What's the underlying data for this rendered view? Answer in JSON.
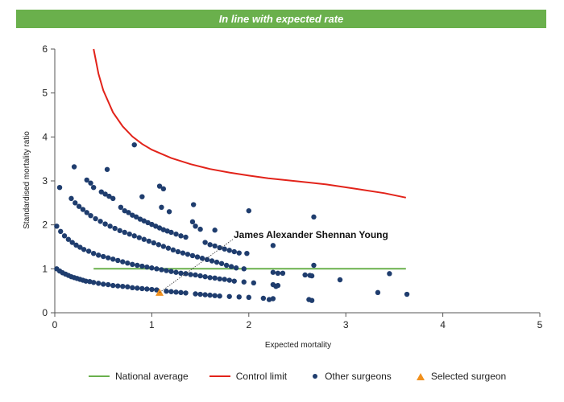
{
  "banner": {
    "text": "In line with expected rate",
    "color": "#6ab04c"
  },
  "chart_data": {
    "type": "scatter",
    "xlabel": "Expected mortality",
    "ylabel": "Standardised mortality ratio",
    "xlim": [
      0,
      5
    ],
    "ylim": [
      0,
      6
    ],
    "x_ticks": [
      "0",
      "1",
      "2",
      "3",
      "4",
      "5"
    ],
    "y_ticks": [
      "0",
      "1",
      "2",
      "3",
      "4",
      "5",
      "6"
    ],
    "grid": false,
    "legend_position": "bottom",
    "annotation": {
      "text": "James Alexander Shennan Young",
      "x": 1.08,
      "y": 0.46
    },
    "series": [
      {
        "name": "National average",
        "kind": "line",
        "color": "#6ab04c",
        "x": [
          0.4,
          3.62
        ],
        "y": [
          1,
          1
        ]
      },
      {
        "name": "Control limit",
        "kind": "line",
        "color": "#e2231a",
        "x": [
          0.4,
          0.45,
          0.5,
          0.6,
          0.7,
          0.8,
          0.9,
          1.0,
          1.2,
          1.4,
          1.6,
          1.8,
          2.0,
          2.2,
          2.5,
          2.8,
          3.1,
          3.4,
          3.62
        ],
        "y": [
          6.0,
          5.44,
          5.06,
          4.56,
          4.24,
          4.01,
          3.84,
          3.71,
          3.52,
          3.38,
          3.27,
          3.19,
          3.12,
          3.06,
          2.99,
          2.92,
          2.82,
          2.72,
          2.62
        ]
      },
      {
        "name": "Other surgeons",
        "kind": "scatter",
        "color": "#1f3d6e",
        "points": [
          [
            0.02,
            1.0
          ],
          [
            0.05,
            0.95
          ],
          [
            0.08,
            0.91
          ],
          [
            0.11,
            0.88
          ],
          [
            0.14,
            0.85
          ],
          [
            0.17,
            0.82
          ],
          [
            0.2,
            0.8
          ],
          [
            0.23,
            0.78
          ],
          [
            0.26,
            0.76
          ],
          [
            0.29,
            0.74
          ],
          [
            0.32,
            0.72
          ],
          [
            0.36,
            0.71
          ],
          [
            0.4,
            0.69
          ],
          [
            0.45,
            0.67
          ],
          [
            0.5,
            0.65
          ],
          [
            0.55,
            0.64
          ],
          [
            0.6,
            0.62
          ],
          [
            0.65,
            0.61
          ],
          [
            0.7,
            0.6
          ],
          [
            0.75,
            0.59
          ],
          [
            0.8,
            0.57
          ],
          [
            0.85,
            0.56
          ],
          [
            0.9,
            0.55
          ],
          [
            0.95,
            0.54
          ],
          [
            1.0,
            0.53
          ],
          [
            1.05,
            0.52
          ],
          [
            1.15,
            0.49
          ],
          [
            1.2,
            0.48
          ],
          [
            1.25,
            0.47
          ],
          [
            1.3,
            0.46
          ],
          [
            1.35,
            0.45
          ],
          [
            1.45,
            0.43
          ],
          [
            1.5,
            0.42
          ],
          [
            1.55,
            0.41
          ],
          [
            1.6,
            0.4
          ],
          [
            1.65,
            0.39
          ],
          [
            1.7,
            0.38
          ],
          [
            1.8,
            0.37
          ],
          [
            1.9,
            0.36
          ],
          [
            2.0,
            0.35
          ],
          [
            2.15,
            0.33
          ],
          [
            2.25,
            0.32
          ],
          [
            0.02,
            1.97
          ],
          [
            0.06,
            1.85
          ],
          [
            0.1,
            1.75
          ],
          [
            0.14,
            1.67
          ],
          [
            0.18,
            1.6
          ],
          [
            0.22,
            1.54
          ],
          [
            0.26,
            1.49
          ],
          [
            0.3,
            1.44
          ],
          [
            0.35,
            1.4
          ],
          [
            0.4,
            1.35
          ],
          [
            0.45,
            1.31
          ],
          [
            0.5,
            1.28
          ],
          [
            0.55,
            1.25
          ],
          [
            0.6,
            1.22
          ],
          [
            0.65,
            1.19
          ],
          [
            0.7,
            1.16
          ],
          [
            0.75,
            1.13
          ],
          [
            0.8,
            1.1
          ],
          [
            0.85,
            1.08
          ],
          [
            0.9,
            1.06
          ],
          [
            0.95,
            1.04
          ],
          [
            1.0,
            1.02
          ],
          [
            1.05,
            1.0
          ],
          [
            1.1,
            0.98
          ],
          [
            1.15,
            0.96
          ],
          [
            1.2,
            0.94
          ],
          [
            1.25,
            0.92
          ],
          [
            1.3,
            0.9
          ],
          [
            1.35,
            0.89
          ],
          [
            1.4,
            0.87
          ],
          [
            1.45,
            0.86
          ],
          [
            1.5,
            0.84
          ],
          [
            1.55,
            0.82
          ],
          [
            1.6,
            0.8
          ],
          [
            1.65,
            0.79
          ],
          [
            1.7,
            0.77
          ],
          [
            1.75,
            0.76
          ],
          [
            1.8,
            0.74
          ],
          [
            1.85,
            0.72
          ],
          [
            1.95,
            0.7
          ],
          [
            2.05,
            0.68
          ],
          [
            2.25,
            0.64
          ],
          [
            2.3,
            0.62
          ],
          [
            2.62,
            0.3
          ],
          [
            2.65,
            0.28
          ],
          [
            0.17,
            2.6
          ],
          [
            0.21,
            2.5
          ],
          [
            0.25,
            2.42
          ],
          [
            0.29,
            2.35
          ],
          [
            0.33,
            2.28
          ],
          [
            0.37,
            2.21
          ],
          [
            0.42,
            2.14
          ],
          [
            0.47,
            2.08
          ],
          [
            0.52,
            2.02
          ],
          [
            0.57,
            1.97
          ],
          [
            0.62,
            1.92
          ],
          [
            0.67,
            1.87
          ],
          [
            0.72,
            1.83
          ],
          [
            0.77,
            1.79
          ],
          [
            0.82,
            1.75
          ],
          [
            0.87,
            1.71
          ],
          [
            0.92,
            1.67
          ],
          [
            0.97,
            1.63
          ],
          [
            1.02,
            1.59
          ],
          [
            1.07,
            1.55
          ],
          [
            1.12,
            1.51
          ],
          [
            1.17,
            1.47
          ],
          [
            1.22,
            1.43
          ],
          [
            1.27,
            1.39
          ],
          [
            1.32,
            1.36
          ],
          [
            1.37,
            1.33
          ],
          [
            1.42,
            1.3
          ],
          [
            1.47,
            1.27
          ],
          [
            1.52,
            1.24
          ],
          [
            1.57,
            1.21
          ],
          [
            1.62,
            1.18
          ],
          [
            1.67,
            1.15
          ],
          [
            1.72,
            1.12
          ],
          [
            1.77,
            1.08
          ],
          [
            1.82,
            1.05
          ],
          [
            1.87,
            1.02
          ],
          [
            1.95,
            1.0
          ],
          [
            2.25,
            0.92
          ],
          [
            2.3,
            0.9
          ],
          [
            2.35,
            0.9
          ],
          [
            2.58,
            0.86
          ],
          [
            2.63,
            0.85
          ],
          [
            2.65,
            0.84
          ],
          [
            0.48,
            2.75
          ],
          [
            0.52,
            2.7
          ],
          [
            0.56,
            2.65
          ],
          [
            0.6,
            2.6
          ],
          [
            0.68,
            2.4
          ],
          [
            0.72,
            2.32
          ],
          [
            0.76,
            2.28
          ],
          [
            0.8,
            2.22
          ],
          [
            0.84,
            2.18
          ],
          [
            0.88,
            2.13
          ],
          [
            0.92,
            2.09
          ],
          [
            0.96,
            2.05
          ],
          [
            1.0,
            2.01
          ],
          [
            1.04,
            1.97
          ],
          [
            1.08,
            1.93
          ],
          [
            1.12,
            1.89
          ],
          [
            1.16,
            1.86
          ],
          [
            1.2,
            1.83
          ],
          [
            1.25,
            1.79
          ],
          [
            1.3,
            1.75
          ],
          [
            1.35,
            1.72
          ],
          [
            1.45,
            1.97
          ],
          [
            1.5,
            1.9
          ],
          [
            1.55,
            1.6
          ],
          [
            1.6,
            1.55
          ],
          [
            1.65,
            1.52
          ],
          [
            1.7,
            1.48
          ],
          [
            1.75,
            1.45
          ],
          [
            1.8,
            1.42
          ],
          [
            1.85,
            1.39
          ],
          [
            1.9,
            1.36
          ],
          [
            1.98,
            1.35
          ],
          [
            2.25,
            1.53
          ],
          [
            0.05,
            2.85
          ],
          [
            0.2,
            3.32
          ],
          [
            0.33,
            3.02
          ],
          [
            0.37,
            2.95
          ],
          [
            0.4,
            2.85
          ],
          [
            0.54,
            3.26
          ],
          [
            0.82,
            3.82
          ],
          [
            0.9,
            2.64
          ],
          [
            1.08,
            2.88
          ],
          [
            1.12,
            2.82
          ],
          [
            1.1,
            2.4
          ],
          [
            1.18,
            2.3
          ],
          [
            1.43,
            2.46
          ],
          [
            1.42,
            2.07
          ],
          [
            1.65,
            1.88
          ],
          [
            2.0,
            2.32
          ],
          [
            2.67,
            2.18
          ],
          [
            2.67,
            1.08
          ],
          [
            2.94,
            0.75
          ],
          [
            3.33,
            0.46
          ],
          [
            3.45,
            0.89
          ],
          [
            3.63,
            0.42
          ],
          [
            2.21,
            0.3
          ],
          [
            2.28,
            0.6
          ]
        ]
      },
      {
        "name": "Selected surgeon",
        "kind": "scatter",
        "color": "#f0901e",
        "points": [
          [
            1.08,
            0.46
          ]
        ]
      }
    ]
  }
}
